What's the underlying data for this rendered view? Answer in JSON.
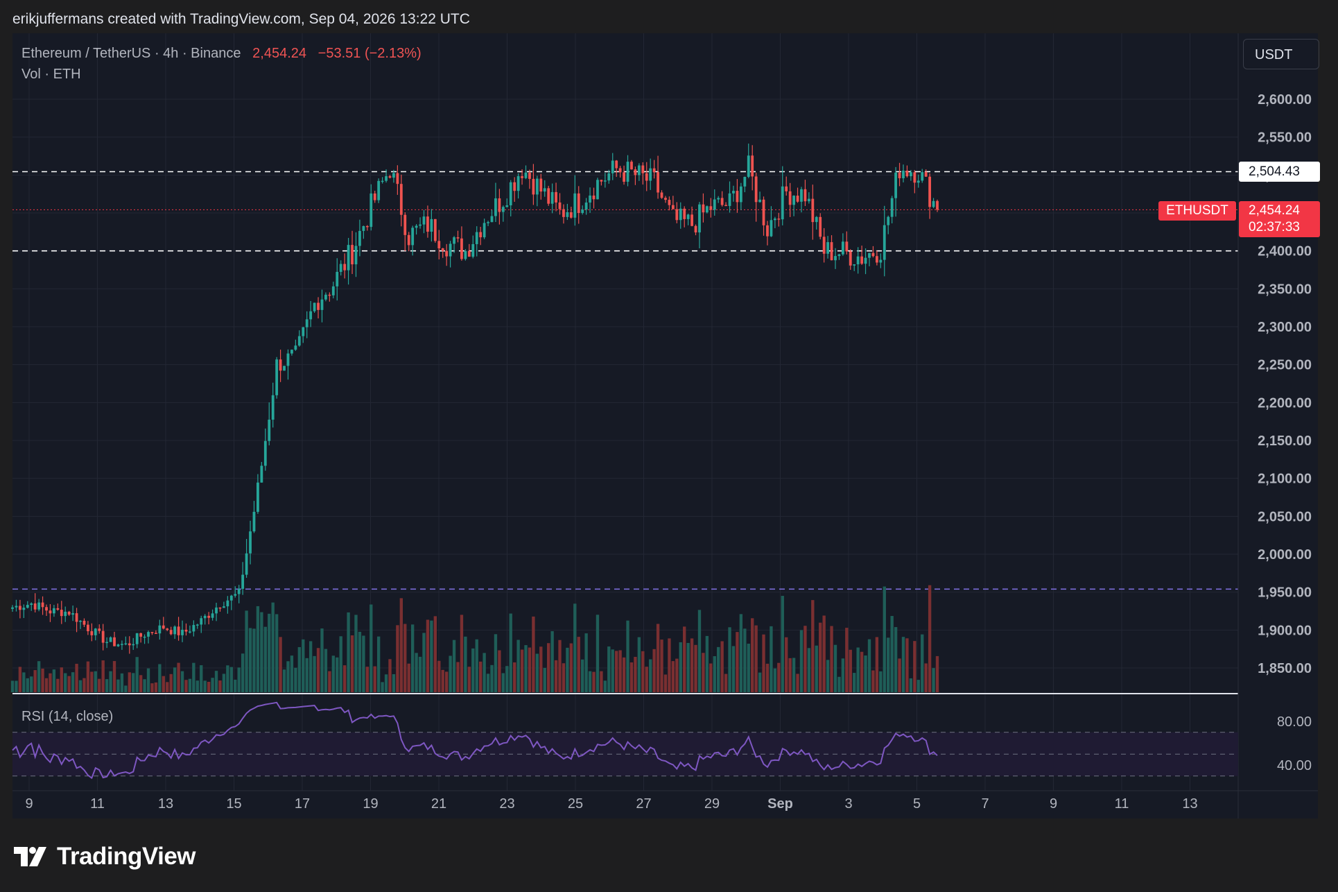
{
  "header": "erikjuffermans created with TradingView.com, Sep 04, 2026 13:22 UTC",
  "legend": {
    "symbol_line": "Ethereum / TetherUS · 4h · Binance",
    "last": "2,454.24",
    "change": "−53.51 (−2.13%)",
    "volume_label": "Vol · ETH",
    "rsi_label": "RSI (14, close)"
  },
  "currency": "USDT",
  "colors": {
    "up": "#26a69a",
    "down": "#ef5350",
    "background": "#161a25",
    "rsi": "#7e57c2"
  },
  "price_labels": {
    "level_upper": "2,504.43",
    "current_price": "2,454.24",
    "countdown": "02:37:33",
    "symbol": "ETHUSDT"
  },
  "brand": "TradingView",
  "chart_data": {
    "type": "candlestick",
    "interval": "4h",
    "y_axis": {
      "range": [
        1820,
        2640
      ],
      "ticks": [
        "2,600.00",
        "2,550.00",
        "2,500.00",
        "2,450.00",
        "2,400.00",
        "2,350.00",
        "2,300.00",
        "2,250.00",
        "2,200.00",
        "2,150.00",
        "2,100.00",
        "2,050.00",
        "2,000.00",
        "1,950.00",
        "1,900.00",
        "1,850.00"
      ],
      "tick_values": [
        2600,
        2550,
        2500,
        2450,
        2400,
        2350,
        2300,
        2250,
        2200,
        2150,
        2100,
        2050,
        2000,
        1950,
        1900,
        1850
      ]
    },
    "x_axis": {
      "ticks": [
        "9",
        "11",
        "13",
        "15",
        "17",
        "19",
        "21",
        "23",
        "25",
        "27",
        "29",
        "Sep",
        "3",
        "5",
        "7",
        "9",
        "11",
        "13"
      ],
      "tick_offsets_days": [
        0,
        2,
        4,
        6,
        8,
        10,
        12,
        14,
        16,
        18,
        20,
        22,
        24,
        26,
        28,
        30,
        32,
        34
      ]
    },
    "horizontal_levels": [
      {
        "value": 2504.43,
        "style": "dashed",
        "color": "#ffffff"
      },
      {
        "value": 2400.0,
        "style": "dashed",
        "color": "#ffffff"
      },
      {
        "value": 1954.0,
        "style": "dashed",
        "color": "#7b6cd9"
      },
      {
        "value": 2454.24,
        "style": "dotted",
        "color": "#f23645"
      }
    ],
    "key_closes": [
      [
        0,
        1930
      ],
      [
        1,
        1935
      ],
      [
        2,
        1925
      ],
      [
        3,
        1924
      ],
      [
        4,
        1903
      ],
      [
        5,
        1885
      ],
      [
        6,
        1880
      ],
      [
        7,
        1895
      ],
      [
        8,
        1904
      ],
      [
        9,
        1895
      ],
      [
        10,
        1912
      ],
      [
        11,
        1935
      ],
      [
        12,
        1948
      ],
      [
        13,
        2085
      ],
      [
        14,
        2250
      ],
      [
        15,
        2262
      ],
      [
        16,
        2330
      ],
      [
        17,
        2357
      ],
      [
        18,
        2400
      ],
      [
        19,
        2458
      ],
      [
        20,
        2510
      ],
      [
        21,
        2420
      ],
      [
        22,
        2435
      ],
      [
        23,
        2410
      ],
      [
        24,
        2400
      ],
      [
        25,
        2442
      ],
      [
        26,
        2470
      ],
      [
        27,
        2510
      ],
      [
        28,
        2480
      ],
      [
        29,
        2450
      ],
      [
        30,
        2465
      ],
      [
        31,
        2490
      ],
      [
        32,
        2508
      ],
      [
        33,
        2500
      ],
      [
        34,
        2490
      ],
      [
        35,
        2440
      ],
      [
        36,
        2435
      ],
      [
        37,
        2458
      ],
      [
        38,
        2462
      ],
      [
        39,
        2508
      ],
      [
        40,
        2430
      ],
      [
        41,
        2478
      ],
      [
        42,
        2475
      ],
      [
        43,
        2400
      ],
      [
        44,
        2398
      ],
      [
        45,
        2392
      ],
      [
        46,
        2404
      ],
      [
        47,
        2510
      ],
      [
        48,
        2506
      ],
      [
        49,
        2454
      ]
    ],
    "volume": {
      "label": "Vol · ETH"
    },
    "rsi": {
      "label": "RSI (14, close)",
      "ticks": [
        "80.00",
        "40.00"
      ],
      "tick_values": [
        80,
        40
      ],
      "bands": [
        70,
        50,
        30
      ],
      "range": [
        20,
        100
      ]
    },
    "last_price": 2454.24
  }
}
